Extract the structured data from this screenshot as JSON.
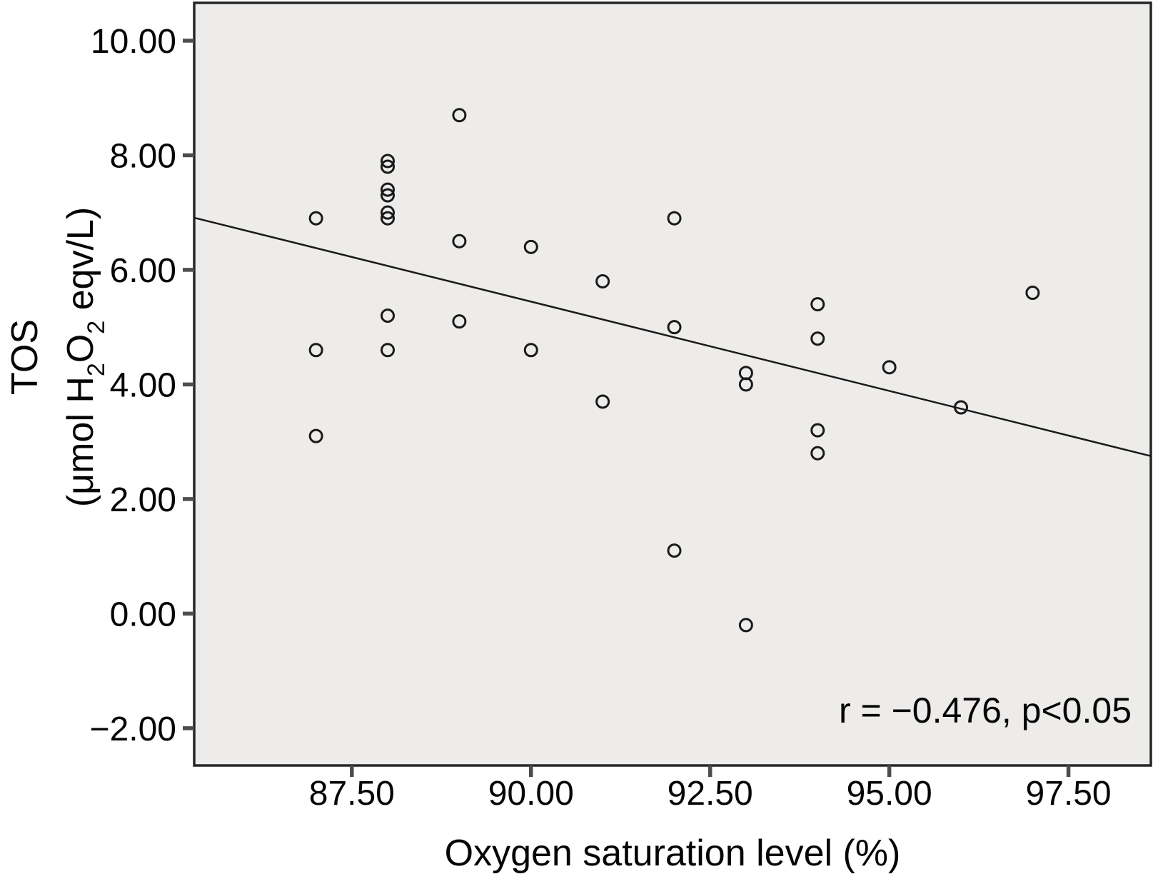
{
  "figure": {
    "colors": {
      "page_bg": "#ffffff",
      "plot_bg": "#edecea",
      "frame": "#262626",
      "tick": "#4d4d4d",
      "text": "#050505",
      "marker": "#1a1a1a",
      "line": "#1a1a1a"
    }
  },
  "chart_data": {
    "type": "scatter",
    "title": "",
    "xlabel": "Oxygen saturation level (%)",
    "ylabel": "TOS (μmol H₂O₂ eqv/L)",
    "ylabel_line1": "TOS",
    "ylabel_line2_parts": [
      {
        "text": "(μmol H",
        "sub": false
      },
      {
        "text": "2",
        "sub": true
      },
      {
        "text": "O",
        "sub": false
      },
      {
        "text": "2",
        "sub": true
      },
      {
        "text": " eqv/L)",
        "sub": false
      }
    ],
    "annotation": "r = −0.476, p<0.05",
    "xlim": [
      85.3,
      98.65
    ],
    "ylim": [
      -2.65,
      10.66
    ],
    "grid": false,
    "legend": "none",
    "marker": {
      "shape": "open-circle",
      "radius": 8.5
    },
    "x_ticks": [
      {
        "value": 87.5,
        "label": "87.50"
      },
      {
        "value": 90.0,
        "label": "90.00"
      },
      {
        "value": 92.5,
        "label": "92.50"
      },
      {
        "value": 95.0,
        "label": "95.00"
      },
      {
        "value": 97.5,
        "label": "97.50"
      }
    ],
    "y_ticks": [
      {
        "value": 10,
        "label": "10.00"
      },
      {
        "value": 8,
        "label": "8.00"
      },
      {
        "value": 6,
        "label": "6.00"
      },
      {
        "value": 4,
        "label": "4.00"
      },
      {
        "value": 2,
        "label": "2.00"
      },
      {
        "value": 0,
        "label": "0.00"
      },
      {
        "value": -2,
        "label": "−2.00"
      }
    ],
    "points": [
      [
        87.0,
        6.9
      ],
      [
        87.0,
        4.6
      ],
      [
        87.0,
        3.1
      ],
      [
        88.0,
        7.9
      ],
      [
        88.0,
        7.8
      ],
      [
        88.0,
        7.4
      ],
      [
        88.0,
        7.3
      ],
      [
        88.0,
        7.0
      ],
      [
        88.0,
        6.9
      ],
      [
        88.0,
        5.2
      ],
      [
        88.0,
        4.6
      ],
      [
        89.0,
        8.7
      ],
      [
        89.0,
        6.5
      ],
      [
        89.0,
        5.1
      ],
      [
        90.0,
        6.4
      ],
      [
        90.0,
        4.6
      ],
      [
        91.0,
        5.8
      ],
      [
        91.0,
        3.7
      ],
      [
        92.0,
        6.9
      ],
      [
        92.0,
        5.0
      ],
      [
        92.0,
        1.1
      ],
      [
        93.0,
        4.2
      ],
      [
        93.0,
        4.0
      ],
      [
        93.0,
        -0.2
      ],
      [
        94.0,
        5.4
      ],
      [
        94.0,
        4.8
      ],
      [
        94.0,
        3.2
      ],
      [
        94.0,
        2.8
      ],
      [
        95.0,
        4.3
      ],
      [
        96.0,
        3.6
      ],
      [
        97.0,
        5.6
      ]
    ],
    "regression_line": {
      "x1": 85.3,
      "y1": 6.91,
      "x2": 98.65,
      "y2": 2.75
    }
  }
}
